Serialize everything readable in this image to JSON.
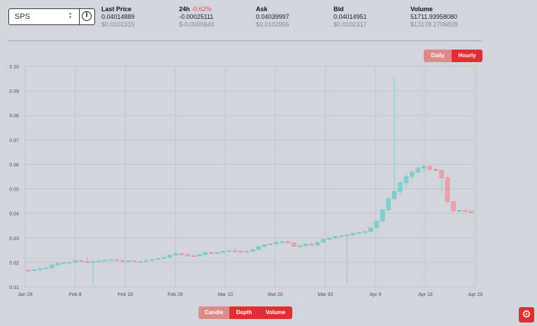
{
  "selector": {
    "value": "SPS"
  },
  "stats": [
    {
      "key": "last",
      "label": "Last Price",
      "label_suffix": "",
      "value1": "0.04014889",
      "value2": "$0.0102315"
    },
    {
      "key": "change",
      "label": "24h",
      "label_suffix": "-0.62%",
      "value1": "-0.00025111",
      "value2": "$-0.0000640"
    },
    {
      "key": "ask",
      "label": "Ask",
      "label_suffix": "",
      "value1": "0.04039997",
      "value2": "$0.0102955"
    },
    {
      "key": "bid",
      "label": "Bid",
      "label_suffix": "",
      "value1": "0.04014951",
      "value2": "$0.0102317"
    },
    {
      "key": "volume",
      "label": "Volume",
      "label_suffix": "",
      "value1": "51711.93958080",
      "value2": "$13178.2706828"
    }
  ],
  "interval": {
    "daily": "Daily",
    "hourly": "Hourly"
  },
  "bottom_tabs": {
    "candle": "Candle",
    "depth": "Depth",
    "volume": "Volume"
  },
  "colors": {
    "up": "#7fd1d1",
    "down": "#f0a0a8",
    "accent": "#df2f33"
  },
  "icons": {
    "settings": "gear-icon",
    "info": "info-icon"
  },
  "chart_data": {
    "type": "candlestick",
    "ylim": [
      0.01,
      0.1
    ],
    "yticks": [
      "0.01",
      "0.02",
      "0.03",
      "0.04",
      "0.05",
      "0.06",
      "0.07",
      "0.08",
      "0.09",
      "0.10"
    ],
    "xticks": [
      "Jan 29",
      "Feb 8",
      "Feb 18",
      "Feb 28",
      "Mar 10",
      "Mar 20",
      "Mar 30",
      "Apr 9",
      "Apr 19",
      "Apr 29"
    ],
    "grid": true,
    "candles": [
      {
        "o": 0.0168,
        "h": 0.0172,
        "l": 0.0165,
        "c": 0.0167
      },
      {
        "o": 0.0167,
        "h": 0.0171,
        "l": 0.0164,
        "c": 0.017
      },
      {
        "o": 0.017,
        "h": 0.0176,
        "l": 0.0168,
        "c": 0.0174
      },
      {
        "o": 0.0174,
        "h": 0.018,
        "l": 0.0172,
        "c": 0.0178
      },
      {
        "o": 0.0178,
        "h": 0.0192,
        "l": 0.0176,
        "c": 0.019
      },
      {
        "o": 0.019,
        "h": 0.0198,
        "l": 0.0186,
        "c": 0.0196
      },
      {
        "o": 0.0196,
        "h": 0.02,
        "l": 0.0193,
        "c": 0.0198
      },
      {
        "o": 0.0198,
        "h": 0.0202,
        "l": 0.0196,
        "c": 0.02
      },
      {
        "o": 0.02,
        "h": 0.021,
        "l": 0.0198,
        "c": 0.0207
      },
      {
        "o": 0.0207,
        "h": 0.021,
        "l": 0.0202,
        "c": 0.0205
      },
      {
        "o": 0.0205,
        "h": 0.0222,
        "l": 0.019,
        "c": 0.02
      },
      {
        "o": 0.02,
        "h": 0.0204,
        "l": 0.011,
        "c": 0.0203
      },
      {
        "o": 0.0203,
        "h": 0.0207,
        "l": 0.02,
        "c": 0.0206
      },
      {
        "o": 0.0206,
        "h": 0.0211,
        "l": 0.0204,
        "c": 0.0209
      },
      {
        "o": 0.0209,
        "h": 0.0213,
        "l": 0.0206,
        "c": 0.0211
      },
      {
        "o": 0.0211,
        "h": 0.0213,
        "l": 0.0206,
        "c": 0.0208
      },
      {
        "o": 0.0208,
        "h": 0.021,
        "l": 0.0203,
        "c": 0.0205
      },
      {
        "o": 0.0205,
        "h": 0.0208,
        "l": 0.0202,
        "c": 0.0206
      },
      {
        "o": 0.0206,
        "h": 0.0209,
        "l": 0.0201,
        "c": 0.0203
      },
      {
        "o": 0.0203,
        "h": 0.0206,
        "l": 0.02,
        "c": 0.0204
      },
      {
        "o": 0.0204,
        "h": 0.021,
        "l": 0.0202,
        "c": 0.0208
      },
      {
        "o": 0.0208,
        "h": 0.0214,
        "l": 0.0206,
        "c": 0.0212
      },
      {
        "o": 0.0212,
        "h": 0.0218,
        "l": 0.021,
        "c": 0.0216
      },
      {
        "o": 0.0216,
        "h": 0.0222,
        "l": 0.0214,
        "c": 0.022
      },
      {
        "o": 0.022,
        "h": 0.0232,
        "l": 0.0218,
        "c": 0.023
      },
      {
        "o": 0.023,
        "h": 0.024,
        "l": 0.0228,
        "c": 0.0236
      },
      {
        "o": 0.0236,
        "h": 0.024,
        "l": 0.0228,
        "c": 0.0232
      },
      {
        "o": 0.0232,
        "h": 0.0234,
        "l": 0.0224,
        "c": 0.0227
      },
      {
        "o": 0.0227,
        "h": 0.0232,
        "l": 0.0223,
        "c": 0.0226
      },
      {
        "o": 0.0226,
        "h": 0.0234,
        "l": 0.0224,
        "c": 0.0232
      },
      {
        "o": 0.0232,
        "h": 0.0243,
        "l": 0.023,
        "c": 0.0241
      },
      {
        "o": 0.0241,
        "h": 0.0244,
        "l": 0.0233,
        "c": 0.0236
      },
      {
        "o": 0.0236,
        "h": 0.0243,
        "l": 0.0234,
        "c": 0.0241
      },
      {
        "o": 0.0241,
        "h": 0.0248,
        "l": 0.0238,
        "c": 0.0245
      },
      {
        "o": 0.0245,
        "h": 0.0252,
        "l": 0.024,
        "c": 0.0248
      },
      {
        "o": 0.0248,
        "h": 0.0262,
        "l": 0.0242,
        "c": 0.0246
      },
      {
        "o": 0.0246,
        "h": 0.0249,
        "l": 0.0239,
        "c": 0.0242
      },
      {
        "o": 0.0242,
        "h": 0.0247,
        "l": 0.024,
        "c": 0.0245
      },
      {
        "o": 0.0245,
        "h": 0.0255,
        "l": 0.0243,
        "c": 0.0252
      },
      {
        "o": 0.0252,
        "h": 0.0268,
        "l": 0.025,
        "c": 0.0265
      },
      {
        "o": 0.0265,
        "h": 0.0275,
        "l": 0.0262,
        "c": 0.0272
      },
      {
        "o": 0.0272,
        "h": 0.0278,
        "l": 0.0268,
        "c": 0.0275
      },
      {
        "o": 0.0275,
        "h": 0.0285,
        "l": 0.0272,
        "c": 0.0282
      },
      {
        "o": 0.0282,
        "h": 0.0288,
        "l": 0.0278,
        "c": 0.0284
      },
      {
        "o": 0.0284,
        "h": 0.029,
        "l": 0.0276,
        "c": 0.028
      },
      {
        "o": 0.028,
        "h": 0.0282,
        "l": 0.0262,
        "c": 0.0266
      },
      {
        "o": 0.0266,
        "h": 0.0272,
        "l": 0.026,
        "c": 0.0268
      },
      {
        "o": 0.0268,
        "h": 0.0277,
        "l": 0.0266,
        "c": 0.0275
      },
      {
        "o": 0.0275,
        "h": 0.0278,
        "l": 0.0265,
        "c": 0.027
      },
      {
        "o": 0.027,
        "h": 0.0285,
        "l": 0.0268,
        "c": 0.0282
      },
      {
        "o": 0.0282,
        "h": 0.0296,
        "l": 0.028,
        "c": 0.0294
      },
      {
        "o": 0.0294,
        "h": 0.0302,
        "l": 0.029,
        "c": 0.03
      },
      {
        "o": 0.03,
        "h": 0.031,
        "l": 0.0297,
        "c": 0.0306
      },
      {
        "o": 0.0306,
        "h": 0.0312,
        "l": 0.0302,
        "c": 0.0309
      },
      {
        "o": 0.0309,
        "h": 0.0315,
        "l": 0.011,
        "c": 0.0312
      },
      {
        "o": 0.0312,
        "h": 0.032,
        "l": 0.0308,
        "c": 0.0318
      },
      {
        "o": 0.0318,
        "h": 0.0325,
        "l": 0.0315,
        "c": 0.0322
      },
      {
        "o": 0.0322,
        "h": 0.033,
        "l": 0.0318,
        "c": 0.0326
      },
      {
        "o": 0.0326,
        "h": 0.0345,
        "l": 0.0322,
        "c": 0.0342
      },
      {
        "o": 0.0342,
        "h": 0.0372,
        "l": 0.0338,
        "c": 0.0368
      },
      {
        "o": 0.0368,
        "h": 0.042,
        "l": 0.0362,
        "c": 0.0415
      },
      {
        "o": 0.0415,
        "h": 0.0465,
        "l": 0.041,
        "c": 0.046
      },
      {
        "o": 0.046,
        "h": 0.0955,
        "l": 0.0455,
        "c": 0.049
      },
      {
        "o": 0.049,
        "h": 0.0535,
        "l": 0.0475,
        "c": 0.0525
      },
      {
        "o": 0.0525,
        "h": 0.056,
        "l": 0.0505,
        "c": 0.055
      },
      {
        "o": 0.055,
        "h": 0.0575,
        "l": 0.054,
        "c": 0.0568
      },
      {
        "o": 0.0568,
        "h": 0.059,
        "l": 0.056,
        "c": 0.0585
      },
      {
        "o": 0.0585,
        "h": 0.0598,
        "l": 0.057,
        "c": 0.0592
      },
      {
        "o": 0.0592,
        "h": 0.06,
        "l": 0.0575,
        "c": 0.058
      },
      {
        "o": 0.058,
        "h": 0.0585,
        "l": 0.057,
        "c": 0.0575
      },
      {
        "o": 0.0575,
        "h": 0.0578,
        "l": 0.048,
        "c": 0.0545
      },
      {
        "o": 0.0545,
        "h": 0.0552,
        "l": 0.044,
        "c": 0.0448
      },
      {
        "o": 0.0448,
        "h": 0.0452,
        "l": 0.0405,
        "c": 0.041
      },
      {
        "o": 0.041,
        "h": 0.0416,
        "l": 0.0405,
        "c": 0.0412
      },
      {
        "o": 0.0412,
        "h": 0.0415,
        "l": 0.0404,
        "c": 0.0408
      },
      {
        "o": 0.0408,
        "h": 0.0412,
        "l": 0.04,
        "c": 0.0403
      }
    ]
  }
}
